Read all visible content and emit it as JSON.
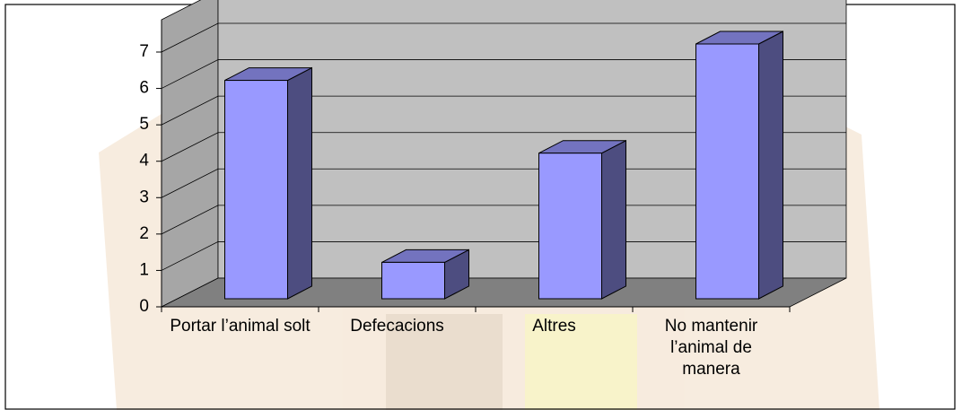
{
  "chart_data": {
    "type": "bar3d",
    "categories": [
      "Portar l’animal solt",
      "Defecacions",
      "Altres",
      "No mantenir l’animal de manera"
    ],
    "values": [
      6,
      1,
      4,
      7
    ],
    "color": "#9999ff",
    "ylim": [
      0,
      7
    ],
    "yticks": [
      0,
      1,
      2,
      3,
      4,
      5,
      6,
      7
    ],
    "grid": true
  }
}
